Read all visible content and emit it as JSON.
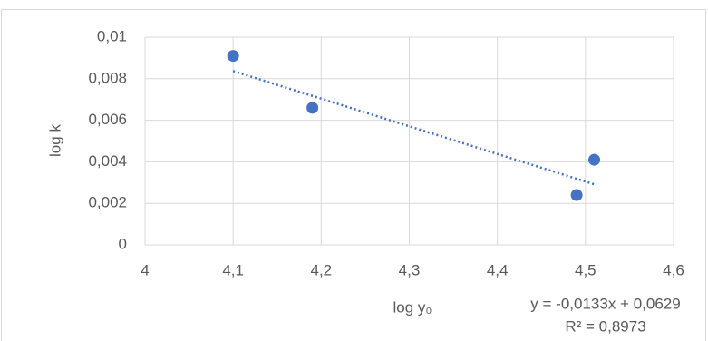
{
  "chart_data": {
    "type": "scatter",
    "x_label": "log y₀",
    "y_label": "log k",
    "series": [
      {
        "color": "#4472c4",
        "x": [
          4.1,
          4.19,
          4.49,
          4.51
        ],
        "values": [
          0.0091,
          0.0066,
          0.0024,
          0.0041
        ]
      }
    ],
    "xlim": [
      4,
      4.6
    ],
    "xticks": [
      4,
      {
        "value": 4.1,
        "label": "4,1"
      },
      {
        "value": 4.2,
        "label": "4,2"
      },
      {
        "value": 4.3,
        "label": "4,3"
      },
      {
        "value": 4.4,
        "label": "4,4"
      },
      {
        "value": 4.5,
        "label": "4,5"
      },
      {
        "value": 4.6,
        "label": "4,6"
      }
    ],
    "ylim": [
      0,
      0.01
    ],
    "yticks": [
      0,
      {
        "value": 0.002,
        "label": "0,002"
      },
      {
        "value": 0.004,
        "label": "0,004"
      },
      {
        "value": 0.006,
        "label": "0,006"
      },
      {
        "value": 0.008,
        "label": "0,008"
      },
      {
        "value": 0.01,
        "label": "0,01"
      }
    ],
    "grid": true,
    "trendline": {
      "slope": -0.0133,
      "intercept": 0.0629,
      "color": "#4472c4",
      "equation": "y = -0,0133x + 0,0629",
      "r2_label": "R² = 0,8973"
    }
  }
}
